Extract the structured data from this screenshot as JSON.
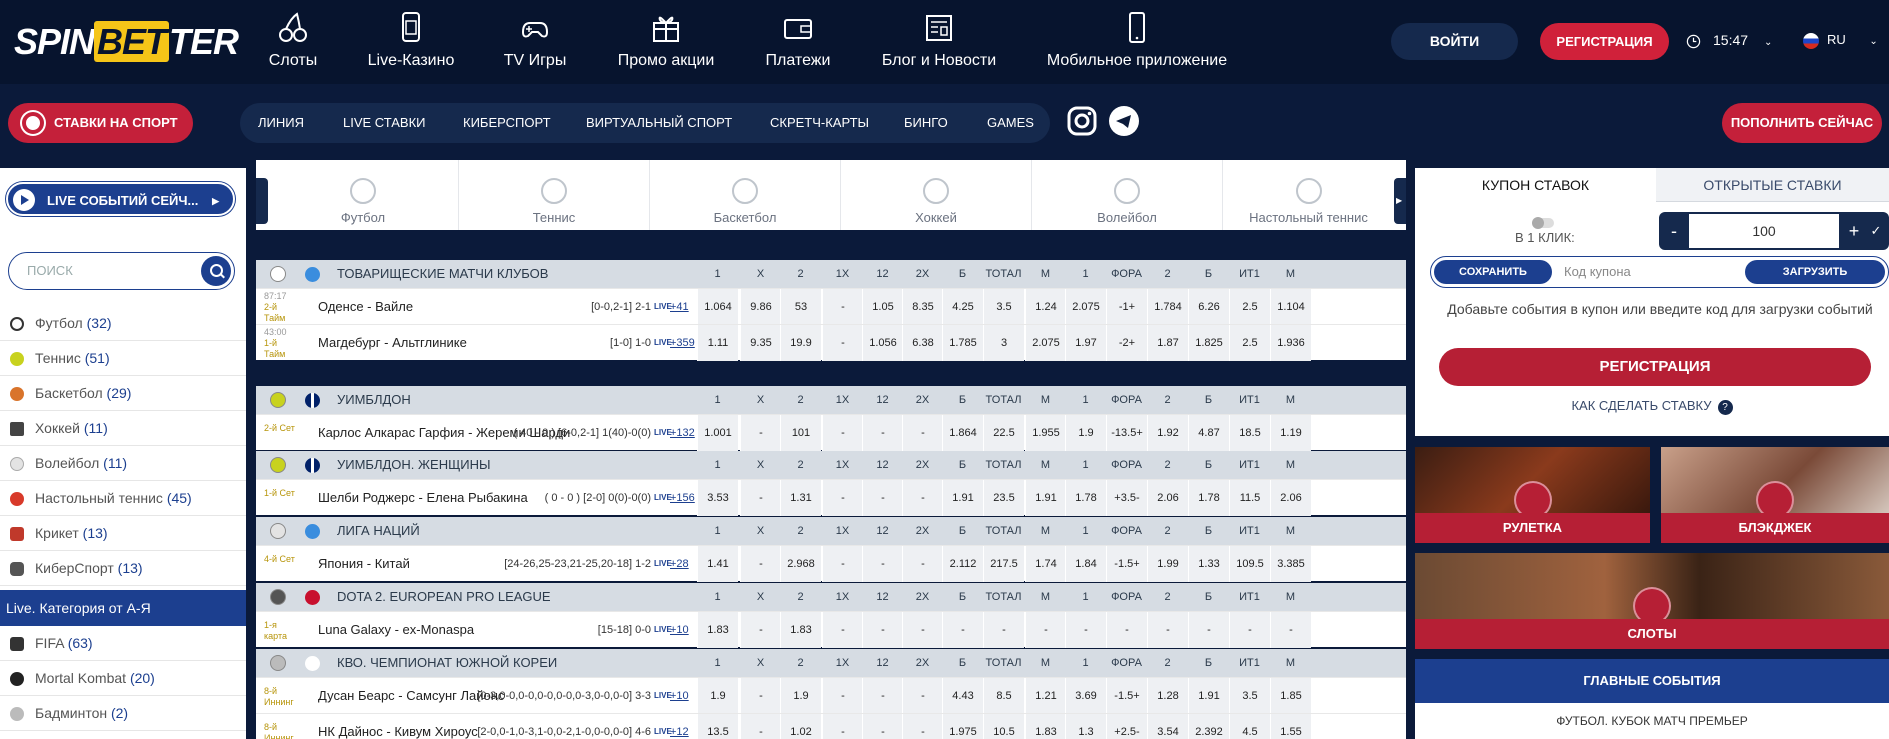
{
  "header": {
    "logo_a": "SPIN",
    "logo_b": "BET",
    "logo_c": "TER",
    "nav": [
      "Слоты",
      "Live-Казино",
      "TV Игры",
      "Промо акции",
      "Платежи",
      "Блог и Новости",
      "Мобильное приложение"
    ],
    "login": "ВОЙТИ",
    "register": "РЕГИСТРАЦИЯ",
    "time": "15:47",
    "lang": "RU"
  },
  "subbar": {
    "sport_button": "СТАВКИ НА СПОРТ",
    "items": [
      "ЛИНИЯ",
      "LIVE СТАВКИ",
      "КИБЕРСПОРТ",
      "ВИРТУАЛЬНЫЙ СПОРТ",
      "СКРЕТЧ-КАРТЫ",
      "БИНГО",
      "GAMES"
    ],
    "deposit": "ПОПОЛНИТЬ СЕЙЧАС"
  },
  "sidebar": {
    "live_pill": "LIVE СОБЫТИЙ СЕЙЧ...",
    "search_placeholder": "ПОИСК",
    "sports": [
      {
        "name": "Футбол",
        "count": "(32)"
      },
      {
        "name": "Теннис",
        "count": "(51)"
      },
      {
        "name": "Баскетбол",
        "count": "(29)"
      },
      {
        "name": "Хоккей",
        "count": "(11)"
      },
      {
        "name": "Волейбол",
        "count": "(11)"
      },
      {
        "name": "Настольный теннис",
        "count": "(45)"
      },
      {
        "name": "Крикет",
        "count": "(13)"
      },
      {
        "name": "КиберСпорт",
        "count": "(13)"
      }
    ],
    "category_title": "Live. Категория от А-Я",
    "cyber": [
      {
        "name": "FIFA",
        "count": "(63)"
      },
      {
        "name": "Mortal Kombat",
        "count": "(20)"
      },
      {
        "name": "Бадминтон",
        "count": "(2)"
      }
    ]
  },
  "sport_tabs": [
    "Футбол",
    "Теннис",
    "Баскетбол",
    "Хоккей",
    "Волейбол",
    "Настольный теннис"
  ],
  "columns": [
    "1",
    "X",
    "2",
    "1X",
    "12",
    "2X",
    "Б",
    "ТОТАЛ",
    "М",
    "1",
    "ФОРА",
    "2",
    "Б",
    "ИТ1",
    "М"
  ],
  "leagues": [
    {
      "name": "ТОВАРИЩЕСКИЕ МАТЧИ КЛУБОВ",
      "matches": [
        {
          "t1": "87:17",
          "t2": "2-й Тайм",
          "teams": "Оденсе - Вайле",
          "score": "[0-0,2-1]  2-1",
          "more": "+41",
          "odds": [
            "1.064",
            "9.86",
            "53",
            "-",
            "1.05",
            "8.35",
            "4.25",
            "3.5",
            "1.24",
            "2.075",
            "-1+",
            "1.784",
            "6.26",
            "2.5",
            "1.104"
          ]
        },
        {
          "t1": "43:00",
          "t2": "1-й Тайм",
          "teams": "Магдебург - Альтглинике",
          "score": "[1-0]  1-0",
          "more": "+359",
          "odds": [
            "1.11",
            "9.35",
            "19.9",
            "-",
            "1.056",
            "6.38",
            "1.785",
            "3",
            "2.075",
            "1.97",
            "-2+",
            "1.87",
            "1.825",
            "2.5",
            "1.936"
          ]
        }
      ]
    },
    {
      "name": "УИМБЛДОН",
      "matches": [
        {
          "t1": "",
          "t2": "2-й Сет",
          "teams": "Карлос Алкарас Гарфия - Жереми Шарди",
          "score": "( 40 - 0 ) [6-0,2-1]  1(40)-0(0)",
          "more": "+132",
          "odds": [
            "1.001",
            "-",
            "101",
            "-",
            "-",
            "-",
            "1.864",
            "22.5",
            "1.955",
            "1.9",
            "-13.5+",
            "1.92",
            "4.87",
            "18.5",
            "1.19"
          ]
        }
      ]
    },
    {
      "name": "УИМБЛДОН. ЖЕНЩИНЫ",
      "matches": [
        {
          "t1": "",
          "t2": "1-й Сет",
          "teams": "Шелби Роджерс - Елена Рыбакина",
          "score": "( 0 - 0 ) [2-0]  0(0)-0(0)",
          "more": "+156",
          "odds": [
            "3.53",
            "-",
            "1.31",
            "-",
            "-",
            "-",
            "1.91",
            "23.5",
            "1.91",
            "1.78",
            "+3.5-",
            "2.06",
            "1.78",
            "11.5",
            "2.06"
          ]
        }
      ]
    },
    {
      "name": "ЛИГА НАЦИЙ",
      "matches": [
        {
          "t1": "",
          "t2": "4-й Сет",
          "teams": "Япония - Китай",
          "score": "[24-26,25-23,21-25,20-18]  1-2",
          "more": "+28",
          "odds": [
            "1.41",
            "-",
            "2.968",
            "-",
            "-",
            "-",
            "2.112",
            "217.5",
            "1.74",
            "1.84",
            "-1.5+",
            "1.99",
            "1.33",
            "109.5",
            "3.385"
          ]
        }
      ]
    },
    {
      "name": "DOTA 2. EUROPEAN PRO LEAGUE",
      "matches": [
        {
          "t1": "",
          "t2": "1-я карта",
          "teams": "Luna Galaxy - ex-Monaspa",
          "score": "[15-18]  0-0",
          "more": "+10",
          "odds": [
            "1.83",
            "-",
            "1.83",
            "-",
            "-",
            "-",
            "-",
            "-",
            "-",
            "-",
            "-",
            "-",
            "-",
            "-",
            "-"
          ]
        }
      ]
    },
    {
      "name": "КВО. ЧЕМПИОНАТ ЮЖНОЙ КОРЕИ",
      "matches": [
        {
          "t1": "",
          "t2": "8-й Иннинг",
          "teams": "Дусан Беарс - Самсунг Лайонс",
          "score": "[0-3,0-0,0-0,0-0,0-0,0-3,0-0,0-0]  3-3",
          "more": "+10",
          "odds": [
            "1.9",
            "-",
            "1.9",
            "-",
            "-",
            "-",
            "4.43",
            "8.5",
            "1.21",
            "3.69",
            "-1.5+",
            "1.28",
            "1.91",
            "3.5",
            "1.85"
          ]
        },
        {
          "t1": "",
          "t2": "8-й Иннинг",
          "teams": "НК Дайнос - Кивум Хироус",
          "score": "[2-0,0-1,0-3,1-0,0-2,1-0,0-0,0-0]  4-6",
          "more": "+12",
          "odds": [
            "13.5",
            "-",
            "1.02",
            "-",
            "-",
            "-",
            "1.975",
            "10.5",
            "1.83",
            "1.3",
            "+2.5-",
            "3.54",
            "2.392",
            "4.5",
            "1.55"
          ]
        }
      ]
    }
  ],
  "live_badge": "LIVE",
  "coupon": {
    "tab_active": "КУПОН СТАВОК",
    "tab_other": "ОТКРЫТЫЕ СТАВКИ",
    "one_click": "В 1 КЛИК:",
    "minus": "-",
    "plus": "+",
    "amount": "100",
    "save": "СОХРАНИТЬ",
    "code_placeholder": "Код купона",
    "load": "ЗАГРУЗИТЬ",
    "hint": "Добавьте события в купон или введите код для загрузки событий",
    "register": "РЕГИСТРАЦИЯ",
    "howto": "КАК СДЕЛАТЬ СТАВКУ",
    "howto_q": "?"
  },
  "promos": [
    "РУЛЕТКА",
    "БЛЭКДЖЕК",
    "СЛОТЫ"
  ],
  "main_events": "ГЛАВНЫЕ СОБЫТИЯ",
  "main_events_sub": "ФУТБОЛ. КУБОК МАТЧ ПРЕМЬЕР",
  "colors": {
    "brand_red": "#c4203a",
    "brand_blue": "#1c3f8f",
    "dark": "#07142e",
    "gold": "#f5c518"
  }
}
